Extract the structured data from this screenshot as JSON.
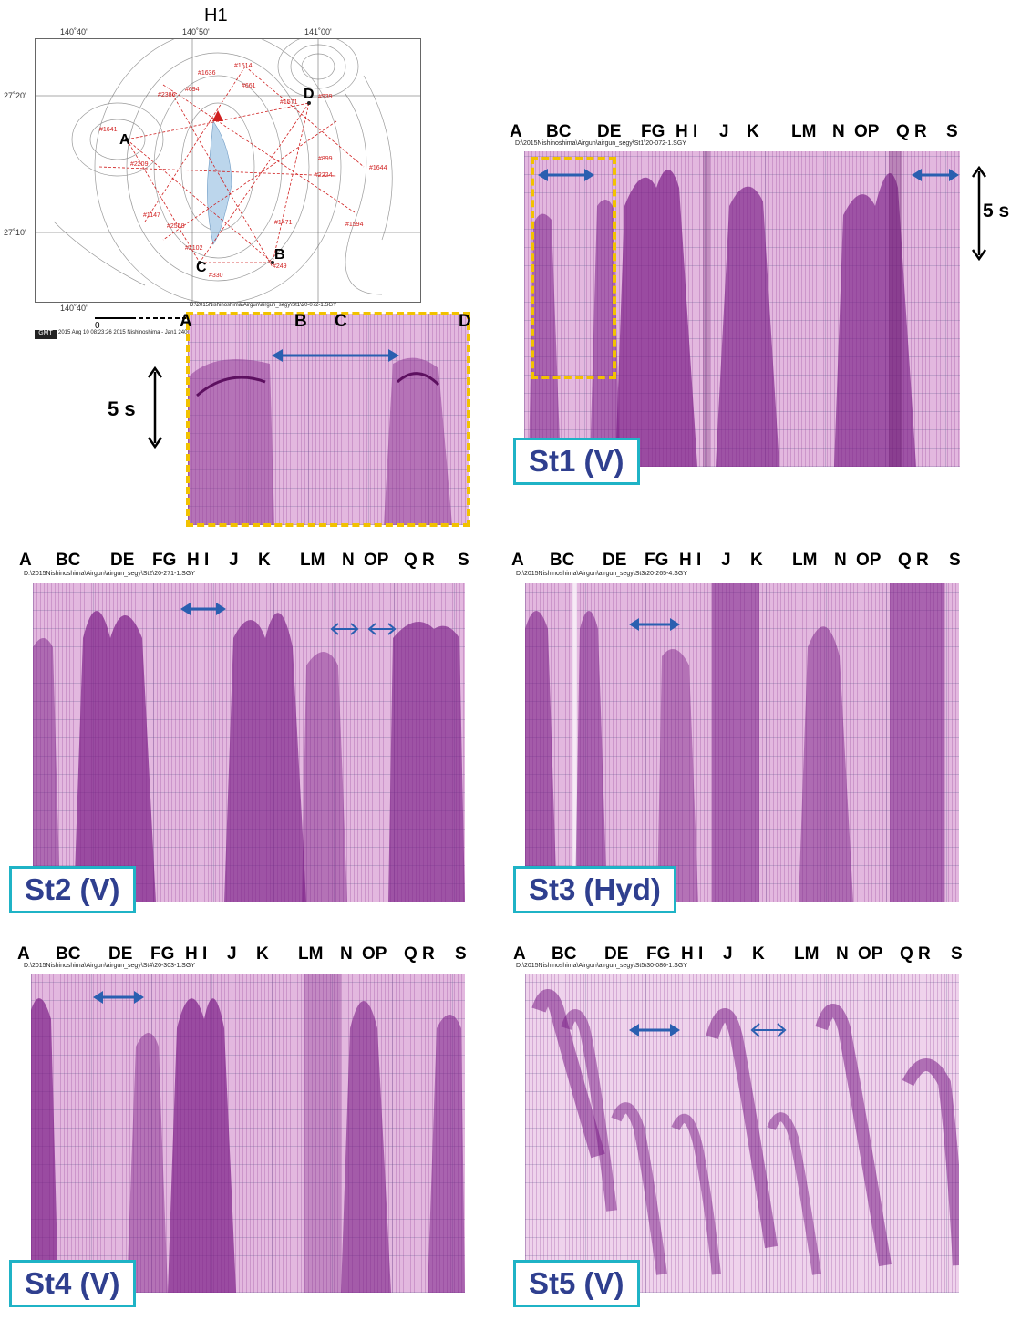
{
  "map": {
    "title": "H1",
    "lon_ticks": [
      "140˚40'",
      "140˚50'",
      "141˚00'"
    ],
    "lat_ticks": [
      "27˚20'",
      "27˚10'"
    ],
    "bottom_lon": "140˚40'",
    "scale_zero": "0",
    "station_labels": [
      "A",
      "B",
      "C",
      "D"
    ],
    "shot_labels": [
      "#1636",
      "#1614",
      "#694",
      "#661",
      "#2386",
      "#1571",
      "#939",
      "#1641",
      "#2209",
      "#899",
      "#1644",
      "#2224",
      "#1147",
      "#2558",
      "#1471",
      "#1594",
      "#2102",
      "#249",
      "#330"
    ],
    "footer_text": "2015 Aug 10 08:23:26   2015 Nishinoshima - Jan1 240000-7c",
    "footer_badge": "GMT"
  },
  "inset": {
    "file_title": "D:\\2015Nishinoshima\\Airgun\\airgun_segy\\St1\\20-072-1.SGY",
    "letters": [
      "A",
      "B",
      "C",
      "D"
    ],
    "scale_label": "5 s"
  },
  "panels": [
    {
      "id": "st1",
      "label": "St1 (V)",
      "file_title": "D:\\2015Nishinoshima\\Airgun\\airgun_segy\\St1\\20-072-1.SGY",
      "letters": [
        "A",
        "BC",
        "DE",
        "FG",
        "H I",
        "J",
        "K",
        "LM",
        "N",
        "OP",
        "Q R",
        "S"
      ],
      "scale_label": "5 s"
    },
    {
      "id": "st2",
      "label": "St2 (V)",
      "file_title": "D:\\2015Nishinoshima\\Airgun\\airgun_segy\\St2\\20-271-1.SGY",
      "letters": [
        "A",
        "BC",
        "DE",
        "FG",
        "H I",
        "J",
        "K",
        "LM",
        "N",
        "OP",
        "Q R",
        "S"
      ]
    },
    {
      "id": "st3",
      "label": "St3 (Hyd)",
      "file_title": "D:\\2015Nishinoshima\\Airgun\\airgun_segy\\St3\\20-265-4.SGY",
      "letters": [
        "A",
        "BC",
        "DE",
        "FG",
        "H I",
        "J",
        "K",
        "LM",
        "N",
        "OP",
        "Q R",
        "S"
      ]
    },
    {
      "id": "st4",
      "label": "St4 (V)",
      "file_title": "D:\\2015Nishinoshima\\Airgun\\airgun_segy\\St4\\20-303-1.SGY",
      "letters": [
        "A",
        "BC",
        "DE",
        "FG",
        "H I",
        "J",
        "K",
        "LM",
        "N",
        "OP",
        "Q R",
        "S"
      ]
    },
    {
      "id": "st5",
      "label": "St5 (V)",
      "file_title": "D:\\2015Nishinoshima\\Airgun\\airgun_segy\\St5\\30-086-1.SGY",
      "letters": [
        "A",
        "BC",
        "DE",
        "FG",
        "H I",
        "J",
        "K",
        "LM",
        "N",
        "OP",
        "Q R",
        "S"
      ]
    }
  ],
  "colors": {
    "seismic_bg": "#e3b8df",
    "seismic_dark": "#7a1d86",
    "arrow": "#2a5fb0",
    "label_border": "#1fb3c6",
    "label_text": "#2f3f8f",
    "dash_frame": "#f2c200",
    "map_lines": "#d02020"
  }
}
